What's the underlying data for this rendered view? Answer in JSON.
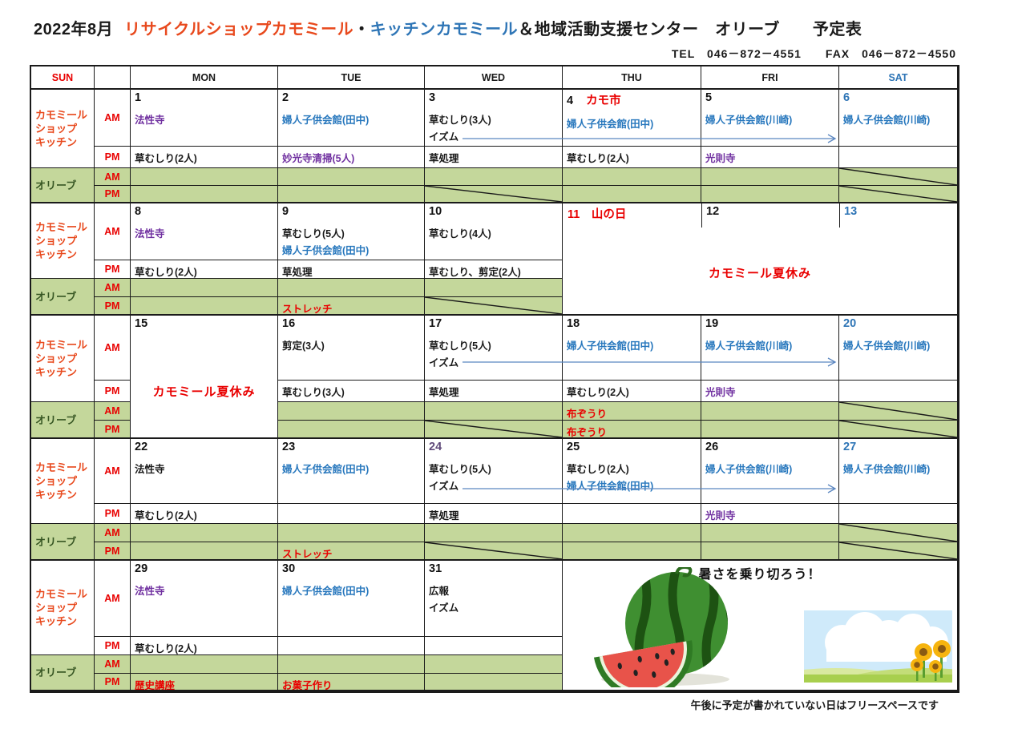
{
  "title": {
    "month": "2022年8月",
    "shop": "リサイクルショップカモミール",
    "dot": "・",
    "kitchen": "キッチンカモミール",
    "rest": "＆地域活動支援センター　オリーブ　　予定表"
  },
  "contact": "TEL　046－872－4551　　FAX　046－872－4550",
  "footnote": "午後に予定が書かれていない日はフリースペースです",
  "header": {
    "sun": "SUN",
    "days": [
      "MON",
      "TUE",
      "WED",
      "THU",
      "FRI",
      "SAT"
    ]
  },
  "labels": {
    "chamomile": [
      "カモミール",
      "ショップ",
      "キッチン"
    ],
    "olive": "オリーブ",
    "am": "AM",
    "pm": "PM"
  },
  "colors": {
    "accent_orange": "#e8491d",
    "title_blue": "#2e75b6",
    "entry_blue": "#2777bd",
    "entry_purple": "#7030a0",
    "red": "#e90000",
    "olive_row_green": "#c4d79b",
    "olive_label_green": "#375623",
    "sat_date_blue": "#2e75b6",
    "date24_purple": "#5f497a",
    "arrow_blue": "#5b86c0"
  },
  "weeks": [
    {
      "days": [
        {
          "date": "1",
          "am": [
            {
              "t": "法性寺",
              "c": "purple"
            }
          ],
          "pm": [
            {
              "t": "草むしり(2人)"
            }
          ]
        },
        {
          "date": "2",
          "am": [
            {
              "t": "婦人子供会館(田中)",
              "c": "blue"
            }
          ],
          "pm": [
            {
              "t": "妙光寺清掃(5人)",
              "c": "purple"
            }
          ]
        },
        {
          "date": "3",
          "am": [
            {
              "t": "草むしり(3人)"
            },
            {
              "t": "イズム"
            }
          ],
          "pm": [
            {
              "t": "草処理"
            }
          ],
          "diag_opm": true
        },
        {
          "date": "4",
          "date_note": "カモ市",
          "am": [
            {
              "t": "婦人子供会館(田中)",
              "c": "blue"
            }
          ],
          "pm": [
            {
              "t": "草むしり(2人)"
            }
          ]
        },
        {
          "date": "5",
          "am": [
            {
              "t": "婦人子供会館(川崎)",
              "c": "blue"
            }
          ],
          "pm": [
            {
              "t": "光則寺",
              "c": "purple"
            }
          ]
        },
        {
          "date": "6",
          "date_c": "blue",
          "am": [
            {
              "t": "婦人子供会館(川崎)",
              "c": "blue"
            }
          ],
          "pm": [],
          "diag_oam": true,
          "diag_opm": true
        }
      ]
    },
    {
      "days": [
        {
          "date": "8",
          "am": [
            {
              "t": "法性寺",
              "c": "purple"
            }
          ],
          "pm": [
            {
              "t": "草むしり(2人)"
            }
          ]
        },
        {
          "date": "9",
          "am": [
            {
              "t": "草むしり(5人)"
            },
            {
              "t": "婦人子供会館(田中)",
              "c": "blue"
            }
          ],
          "pm": [
            {
              "t": "草処理"
            }
          ],
          "opm": [
            {
              "t": "ストレッチ",
              "c": "red"
            }
          ]
        },
        {
          "date": "10",
          "am": [
            {
              "t": "草むしり(4人)"
            }
          ],
          "pm": [
            {
              "t": "草むしり、剪定(2人)"
            }
          ],
          "diag_opm": true
        }
      ],
      "merge_right": {
        "dates": [
          {
            "d": "11",
            "note": "山の日",
            "c": "red"
          },
          {
            "d": "12"
          },
          {
            "d": "13",
            "c": "blue"
          }
        ],
        "text": "カモミール夏休み"
      }
    },
    {
      "days": [
        {
          "date": "15",
          "merge_down": {
            "text": "カモミール夏休み"
          }
        },
        {
          "date": "16",
          "am": [
            {
              "t": "剪定(3人)"
            }
          ],
          "pm": [
            {
              "t": "草むしり(3人)"
            }
          ]
        },
        {
          "date": "17",
          "am": [
            {
              "t": "草むしり(5人)"
            },
            {
              "t": "イズム"
            }
          ],
          "pm": [
            {
              "t": "草処理"
            }
          ],
          "diag_opm": true
        },
        {
          "date": "18",
          "am": [
            {
              "t": "婦人子供会館(田中)",
              "c": "blue"
            }
          ],
          "pm": [
            {
              "t": "草むしり(2人)"
            }
          ],
          "oam": [
            {
              "t": "布ぞうり",
              "c": "red"
            }
          ],
          "opm": [
            {
              "t": "布ぞうり",
              "c": "red"
            }
          ]
        },
        {
          "date": "19",
          "am": [
            {
              "t": "婦人子供会館(川崎)",
              "c": "blue"
            }
          ],
          "pm": [
            {
              "t": "光則寺",
              "c": "purple"
            }
          ]
        },
        {
          "date": "20",
          "date_c": "blue",
          "am": [
            {
              "t": "婦人子供会館(川崎)",
              "c": "blue"
            }
          ],
          "diag_oam": true,
          "diag_opm": true
        }
      ]
    },
    {
      "days": [
        {
          "date": "22",
          "am": [
            {
              "t": "法性寺"
            }
          ],
          "pm": [
            {
              "t": "草むしり(2人)"
            }
          ]
        },
        {
          "date": "23",
          "am": [
            {
              "t": "婦人子供会館(田中)",
              "c": "blue"
            }
          ],
          "pm": [],
          "opm": [
            {
              "t": "ストレッチ",
              "c": "red"
            }
          ]
        },
        {
          "date": "24",
          "date_c": "purple",
          "am": [
            {
              "t": "草むしり(5人)"
            },
            {
              "t": "イズム"
            }
          ],
          "pm": [
            {
              "t": "草処理"
            }
          ],
          "diag_opm": true
        },
        {
          "date": "25",
          "am": [
            {
              "t": "草むしり(2人)"
            },
            {
              "t": "婦人子供会館(田中)",
              "c": "blue"
            }
          ],
          "pm": []
        },
        {
          "date": "26",
          "am": [
            {
              "t": "婦人子供会館(川崎)",
              "c": "blue"
            }
          ],
          "pm": [
            {
              "t": "光則寺",
              "c": "purple"
            }
          ]
        },
        {
          "date": "27",
          "date_c": "blue",
          "am": [
            {
              "t": "婦人子供会館(川崎)",
              "c": "blue"
            }
          ],
          "diag_oam": true,
          "diag_opm": true
        }
      ]
    },
    {
      "days": [
        {
          "date": "29",
          "am": [
            {
              "t": "法性寺",
              "c": "purple"
            }
          ],
          "pm": [
            {
              "t": "草むしり(2人)"
            }
          ],
          "opm": [
            {
              "t": "歴史講座",
              "c": "red"
            }
          ]
        },
        {
          "date": "30",
          "am": [
            {
              "t": "婦人子供会館(田中)",
              "c": "blue"
            }
          ],
          "pm": [],
          "opm": [
            {
              "t": "お菓子作り",
              "c": "red"
            }
          ]
        },
        {
          "date": "31",
          "am": [
            {
              "t": "広報"
            },
            {
              "t": "イズム"
            }
          ],
          "pm": []
        }
      ],
      "merge_right_banner": {
        "text": "暑さを乗り切ろう！"
      }
    }
  ]
}
